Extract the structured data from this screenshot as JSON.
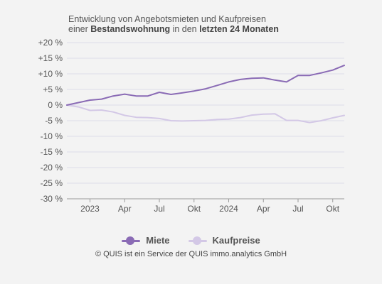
{
  "title": {
    "line1": "Entwicklung von Angebotsmieten und Kaufpreisen",
    "line2_pre": "einer ",
    "line2_bold1": "Bestandswohnung",
    "line2_mid": " in den ",
    "line2_bold2": "letzten 24 Monaten"
  },
  "credit": "© QUIS ist ein Service der QUIS immo.analytics GmbH",
  "chart_data": {
    "type": "line",
    "x_ticks": [
      "2023",
      "Apr",
      "Jul",
      "Okt",
      "2024",
      "Apr",
      "Jul",
      "Okt"
    ],
    "x_tick_months": [
      2,
      5,
      8,
      11,
      14,
      17,
      20,
      23
    ],
    "y_ticks": [
      "+20 %",
      "+15 %",
      "+10 %",
      "+5 %",
      "0 %",
      "-5 %",
      "-10 %",
      "-15 %",
      "-20 %",
      "-25 %",
      "-30 %"
    ],
    "ylim": [
      -30,
      20
    ],
    "y_step": 5,
    "x_months": [
      0,
      24
    ],
    "grid": true,
    "legend_position": "bottom-center",
    "series": [
      {
        "name": "Miete",
        "color": "#8a6bb5",
        "x": [
          0,
          1,
          2,
          3,
          4,
          5,
          6,
          7,
          8,
          9,
          10,
          11,
          12,
          13,
          14,
          15,
          16,
          17,
          18,
          19,
          20,
          21,
          22,
          23,
          24
        ],
        "values": [
          0,
          0.8,
          1.6,
          1.9,
          2.9,
          3.5,
          2.9,
          2.9,
          4.1,
          3.4,
          3.9,
          4.5,
          5.2,
          6.3,
          7.4,
          8.2,
          8.6,
          8.7,
          8.0,
          7.4,
          9.5,
          9.5,
          10.3,
          11.2,
          12.7
        ]
      },
      {
        "name": "Kaufpreise",
        "color": "#d3c8e6",
        "x": [
          0,
          1,
          2,
          3,
          4,
          5,
          6,
          7,
          8,
          9,
          10,
          11,
          12,
          13,
          14,
          15,
          16,
          17,
          18,
          19,
          20,
          21,
          22,
          23,
          24
        ],
        "values": [
          0,
          -0.6,
          -1.7,
          -1.6,
          -2.2,
          -3.3,
          -3.9,
          -4.0,
          -4.3,
          -5.0,
          -5.1,
          -5.0,
          -4.9,
          -4.6,
          -4.5,
          -4.0,
          -3.2,
          -2.9,
          -2.8,
          -4.9,
          -4.9,
          -5.6,
          -5.0,
          -4.1,
          -3.3
        ]
      }
    ]
  }
}
